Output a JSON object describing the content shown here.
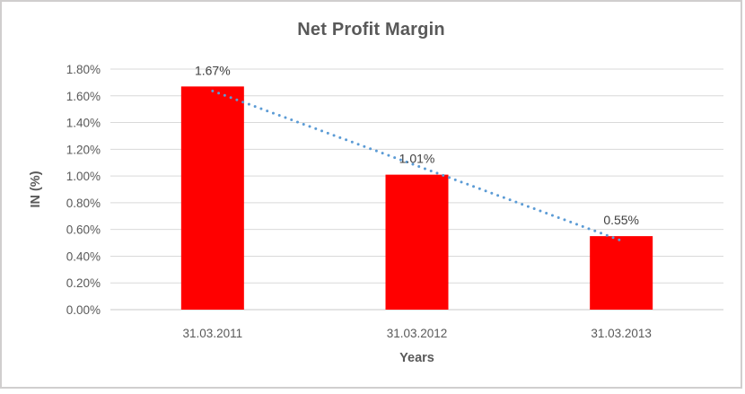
{
  "window": {
    "background": "#FFFFFF",
    "border_color": "#D0CECE"
  },
  "chart_data": {
    "type": "bar",
    "title": "Net Profit Margin",
    "categories": [
      "31.03.2011",
      "31.03.2012",
      "31.03.2013"
    ],
    "values": [
      1.67,
      1.01,
      0.55
    ],
    "data_labels": [
      "1.67%",
      "1.01%",
      "0.55%"
    ],
    "xlabel": "Years",
    "ylabel": "IN (%)",
    "ylim": [
      0,
      1.8
    ],
    "ytick_step": 0.2,
    "ytick_labels": [
      "0.00%",
      "0.20%",
      "0.40%",
      "0.60%",
      "0.80%",
      "1.00%",
      "1.20%",
      "1.40%",
      "1.60%",
      "1.80%"
    ],
    "grid": true,
    "legend": "none",
    "bar_color": "#FF0000",
    "gridline_color": "#D9D9D9",
    "axis_line_color": "#C9C9C9",
    "tick_text_color": "#595959",
    "data_label_color": "#404040",
    "trendline": {
      "type": "linear",
      "style": "dotted",
      "color": "#5B9BD5"
    }
  }
}
